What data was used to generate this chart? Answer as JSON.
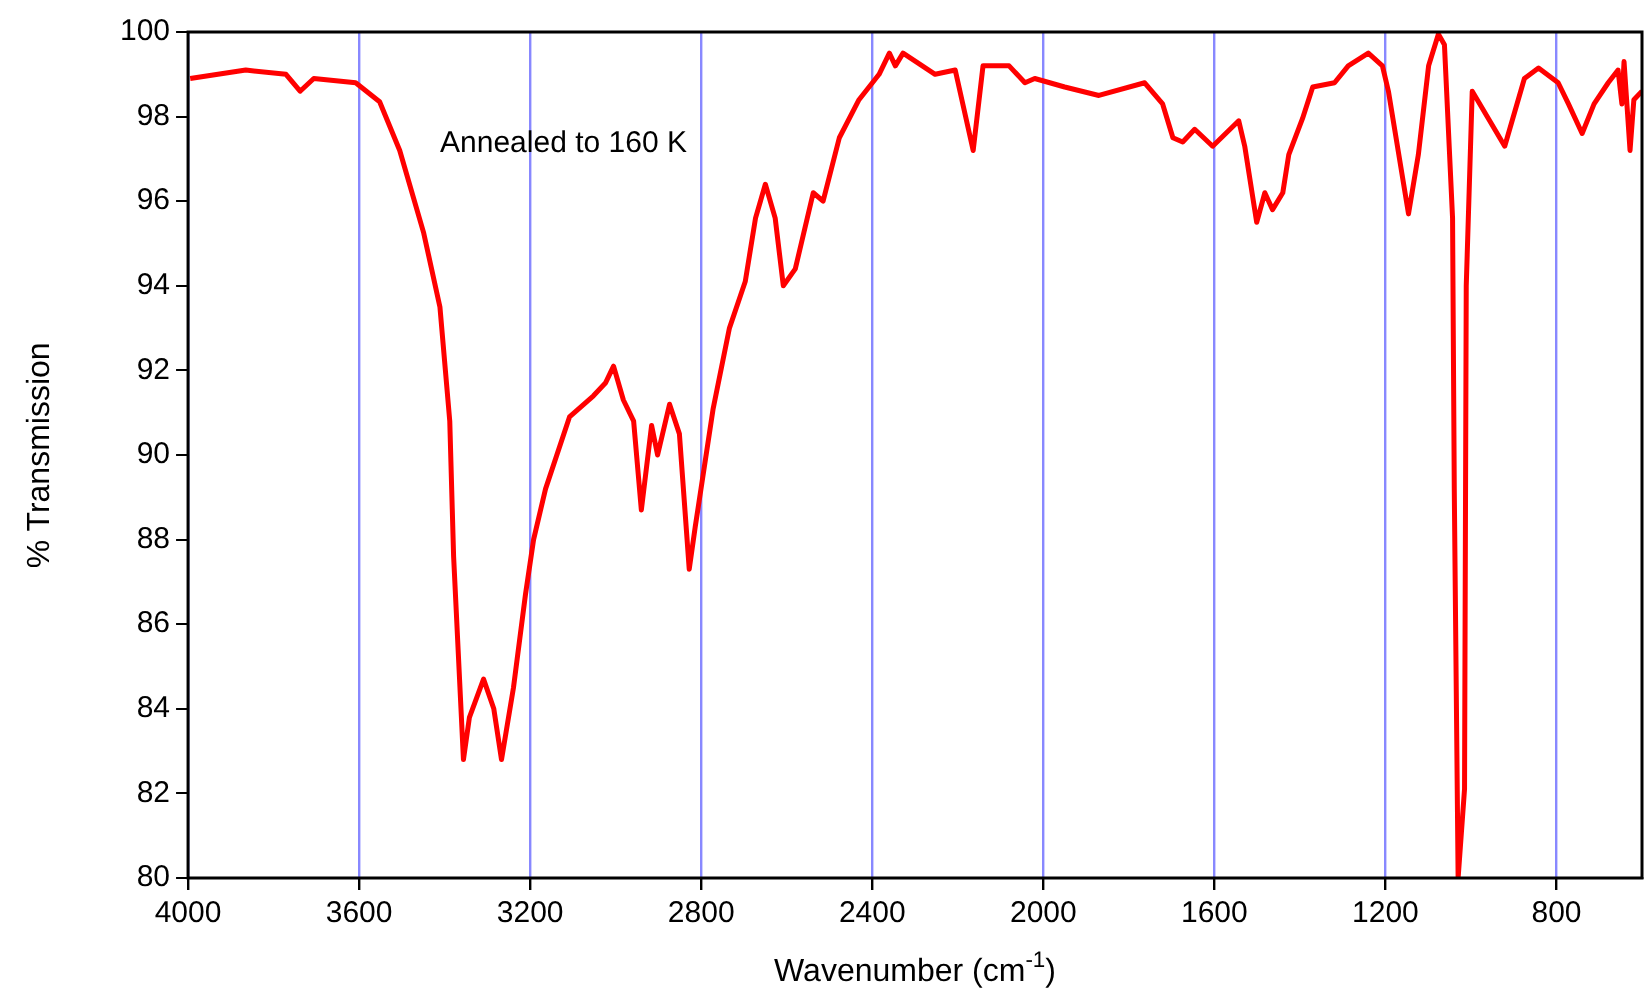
{
  "chart_data": {
    "type": "line",
    "xlabel": "Wavenumber (cm$^{-1}$)",
    "ylabel": "% Transmission",
    "annotations": [
      "Annealed to 160 K"
    ],
    "xlim": [
      4000,
      600
    ],
    "xticks": [
      4000,
      3600,
      3200,
      2800,
      2400,
      2000,
      1600,
      1200,
      800
    ],
    "ylim": [
      80,
      100
    ],
    "yticks": [
      80,
      82,
      84,
      86,
      88,
      90,
      92,
      94,
      96,
      98,
      100
    ],
    "grid": "x",
    "legend": false,
    "marker": "none",
    "line_style": "solid",
    "series": [
      {
        "color": "#ff0000",
        "x": [
          3995,
          3865,
          3771,
          3738,
          3706,
          3608,
          3552,
          3505,
          3449,
          3411,
          3388,
          3379,
          3356,
          3342,
          3309,
          3285,
          3267,
          3239,
          3211,
          3192,
          3164,
          3108,
          3052,
          3024,
          3005,
          2982,
          2958,
          2940,
          2916,
          2902,
          2874,
          2851,
          2828,
          2814,
          2772,
          2734,
          2697,
          2673,
          2650,
          2627,
          2608,
          2580,
          2538,
          2515,
          2477,
          2431,
          2384,
          2360,
          2346,
          2328,
          2253,
          2206,
          2164,
          2141,
          2080,
          2043,
          2020,
          1950,
          1870,
          1763,
          1721,
          1697,
          1674,
          1646,
          1604,
          1543,
          1529,
          1501,
          1482,
          1464,
          1440,
          1426,
          1394,
          1370,
          1319,
          1287,
          1240,
          1207,
          1193,
          1146,
          1123,
          1099,
          1076,
          1062,
          1043,
          1039,
          1030,
          1015,
          1011,
          997,
          959,
          921,
          875,
          842,
          796,
          772,
          740,
          712,
          679,
          656,
          647,
          642,
          628,
          619,
          600
        ],
        "values": [
          98.9,
          99.1,
          99.0,
          98.6,
          98.9,
          98.8,
          98.35,
          97.2,
          95.25,
          93.5,
          90.8,
          87.6,
          82.8,
          83.8,
          84.7,
          84.0,
          82.8,
          84.5,
          86.7,
          88.0,
          89.2,
          90.9,
          91.4,
          91.7,
          92.1,
          91.3,
          90.8,
          88.7,
          90.7,
          90.0,
          91.2,
          90.5,
          87.3,
          88.3,
          91.1,
          93.0,
          94.1,
          95.6,
          96.4,
          95.6,
          94.0,
          94.4,
          96.2,
          96.0,
          97.5,
          98.4,
          99.0,
          99.5,
          99.2,
          99.5,
          99.0,
          99.1,
          97.2,
          99.2,
          99.2,
          98.8,
          98.9,
          98.7,
          98.5,
          98.8,
          98.3,
          97.5,
          97.4,
          97.7,
          97.3,
          97.9,
          97.3,
          95.5,
          96.2,
          95.8,
          96.2,
          97.1,
          97.95,
          98.7,
          98.8,
          99.2,
          99.5,
          99.2,
          98.6,
          95.7,
          97.1,
          99.2,
          99.95,
          99.7,
          95.6,
          89.2,
          80,
          82.1,
          94.0,
          98.6,
          97.95,
          97.3,
          98.9,
          99.15,
          98.8,
          98.3,
          97.6,
          98.3,
          98.8,
          99.1,
          98.3,
          99.3,
          97.2,
          98.4,
          98.6
        ]
      }
    ]
  }
}
